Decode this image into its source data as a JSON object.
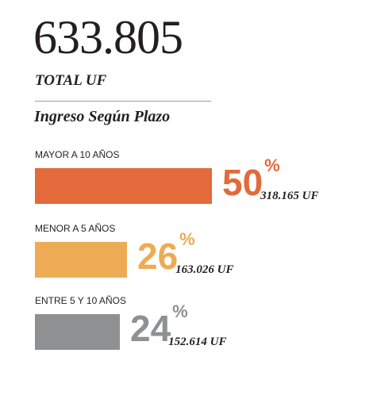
{
  "header": {
    "total_value": "633.805",
    "total_label": "TOTAL UF",
    "section_title": "Ingreso Según Plazo"
  },
  "chart_data": {
    "type": "bar",
    "orientation": "horizontal",
    "title": "Ingreso Según Plazo",
    "total": "633.805",
    "total_label": "TOTAL UF",
    "categories": [
      "MAYOR A 10 AÑOS",
      "MENOR A 5 AÑOS",
      "ENTRE 5 Y 10 AÑOS"
    ],
    "values": [
      50,
      26,
      24
    ],
    "value_unit": "%",
    "value_labels": [
      "50",
      "26",
      "24"
    ],
    "amounts": [
      "318.165 UF",
      "163.026 UF",
      "152.614 UF"
    ],
    "colors": [
      "#e26a3b",
      "#eeab55",
      "#8f9092"
    ],
    "grid": false,
    "legend": "none"
  }
}
